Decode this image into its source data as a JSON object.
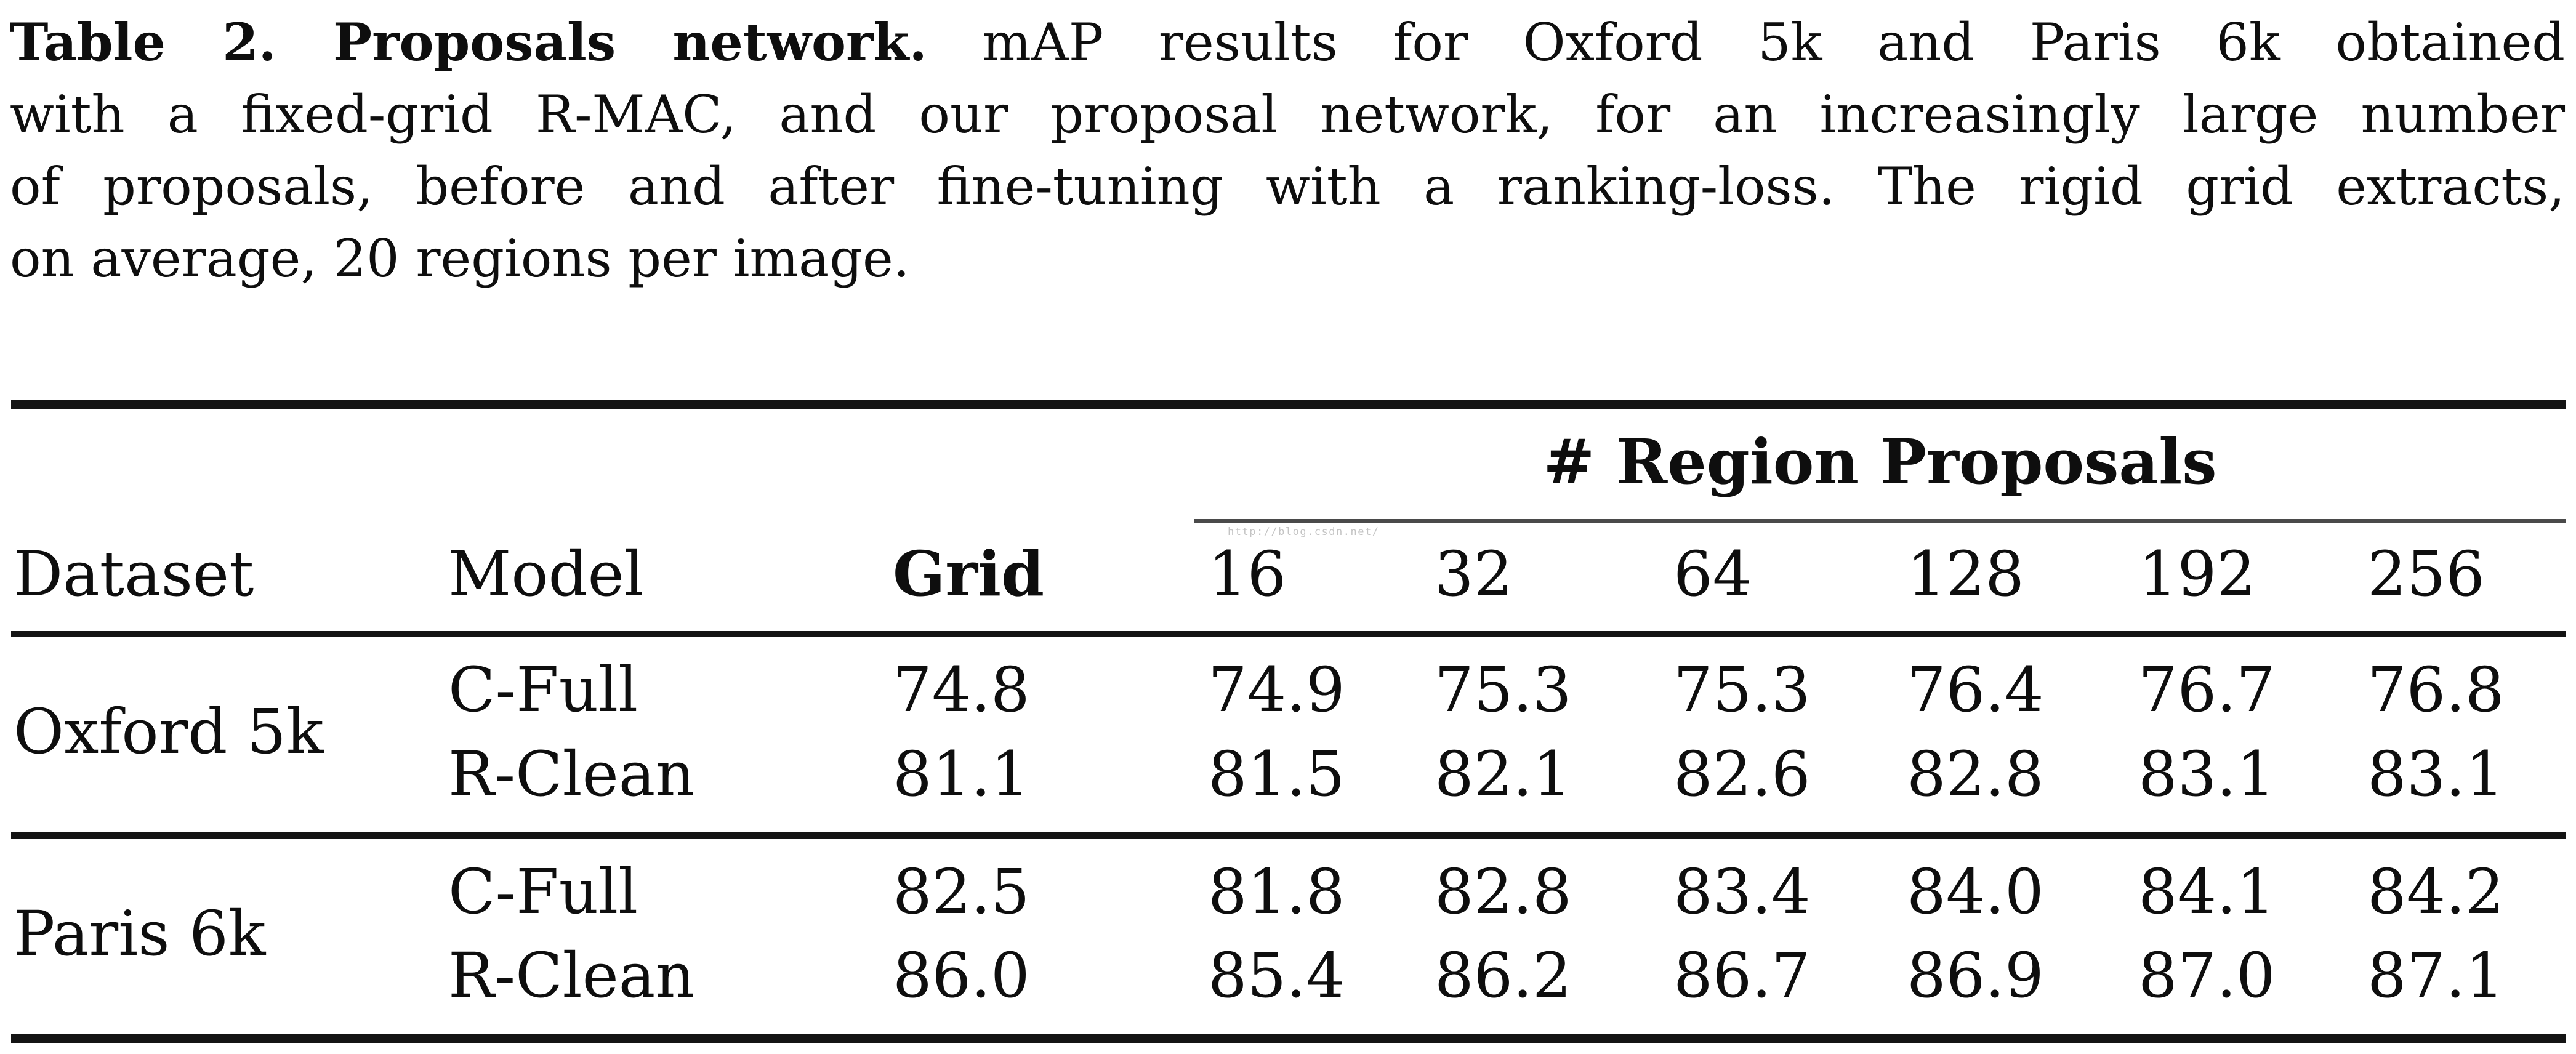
{
  "caption": {
    "title_bold": "Table 2. Proposals network.",
    "line1_rest": "mAP results for Oxford 5k and Paris 6k obtained",
    "line2": "with a fixed-grid R-MAC, and our proposal network, for an increasingly large number",
    "line3": "of proposals, before and after fine-tuning with a ranking-loss. The rigid grid extracts,",
    "line4": "on average, 20 regions per image."
  },
  "watermark": "http://blog.csdn.net/",
  "table": {
    "span_header": "# Region Proposals",
    "col_headers": {
      "dataset": "Dataset",
      "model": "Model",
      "grid": "Grid",
      "proposals": [
        "16",
        "32",
        "64",
        "128",
        "192",
        "256"
      ]
    },
    "groups": [
      {
        "dataset": "Oxford 5k",
        "rows": [
          {
            "model": "C-Full",
            "grid": "74.8",
            "values": [
              "74.9",
              "75.3",
              "75.3",
              "76.4",
              "76.7",
              "76.8"
            ]
          },
          {
            "model": "R-Clean",
            "grid": "81.1",
            "values": [
              "81.5",
              "82.1",
              "82.6",
              "82.8",
              "83.1",
              "83.1"
            ]
          }
        ]
      },
      {
        "dataset": "Paris 6k",
        "rows": [
          {
            "model": "C-Full",
            "grid": "82.5",
            "values": [
              "81.8",
              "82.8",
              "83.4",
              "84.0",
              "84.1",
              "84.2"
            ]
          },
          {
            "model": "R-Clean",
            "grid": "86.0",
            "values": [
              "85.4",
              "86.2",
              "86.7",
              "86.9",
              "87.0",
              "87.1"
            ]
          }
        ]
      }
    ]
  }
}
